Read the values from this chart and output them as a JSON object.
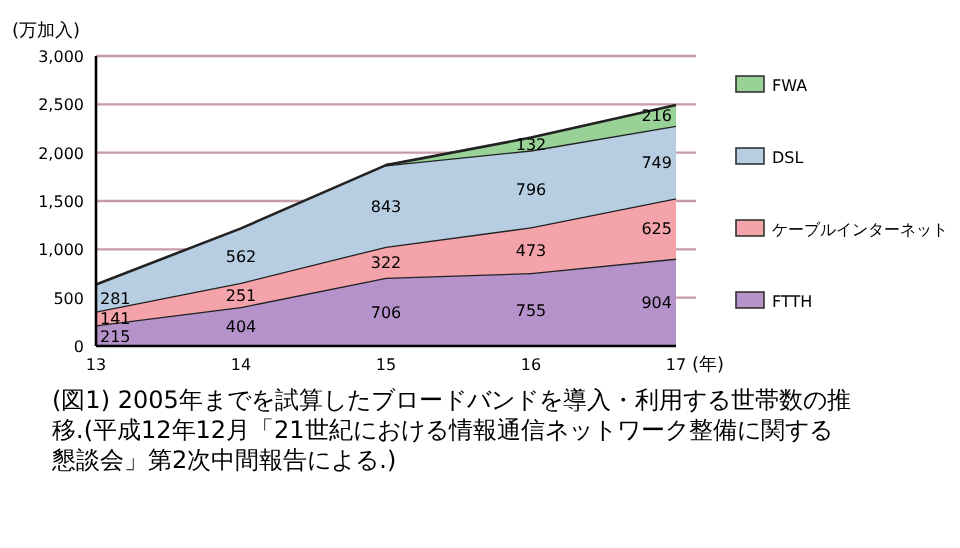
{
  "chart_data": {
    "type": "area",
    "stacked": true,
    "ylabel": "(万加入)",
    "xlabel": "(年)",
    "categories": [
      "13",
      "14",
      "15",
      "16",
      "17"
    ],
    "series": [
      {
        "name": "FTTH",
        "color": "#b592c9",
        "values": [
          215,
          404,
          706,
          755,
          904
        ]
      },
      {
        "name": "ケーブルインターネット",
        "color": "#f5a3aa",
        "values": [
          141,
          251,
          322,
          473,
          625
        ]
      },
      {
        "name": "DSL",
        "color": "#b6cde2",
        "values": [
          281,
          562,
          843,
          796,
          749
        ]
      },
      {
        "name": "FWA",
        "color": "#98d296",
        "values": [
          null,
          null,
          0,
          132,
          216
        ],
        "value_labels": [
          null,
          null,
          null,
          "132",
          "216"
        ]
      }
    ],
    "data_labels": true,
    "ylim": [
      0,
      3000
    ],
    "yticks": [
      0,
      {
        "value": 500,
        "label": "500"
      },
      {
        "value": 1000,
        "label": "1,000"
      },
      {
        "value": 1500,
        "label": "1,500"
      },
      {
        "value": 2000,
        "label": "2,000"
      },
      {
        "value": 2500,
        "label": "2,500"
      },
      {
        "value": 3000,
        "label": "3,000"
      }
    ],
    "grid": "y",
    "legend": "right",
    "annotations": [
      "(図1) 2005年までを試算したブロードバンドを導入・利用する世帯数の推移.(平成12年12月「21世紀における情報通信ネットワーク整備に関する懇談会」第2次中間報告による.)"
    ]
  }
}
